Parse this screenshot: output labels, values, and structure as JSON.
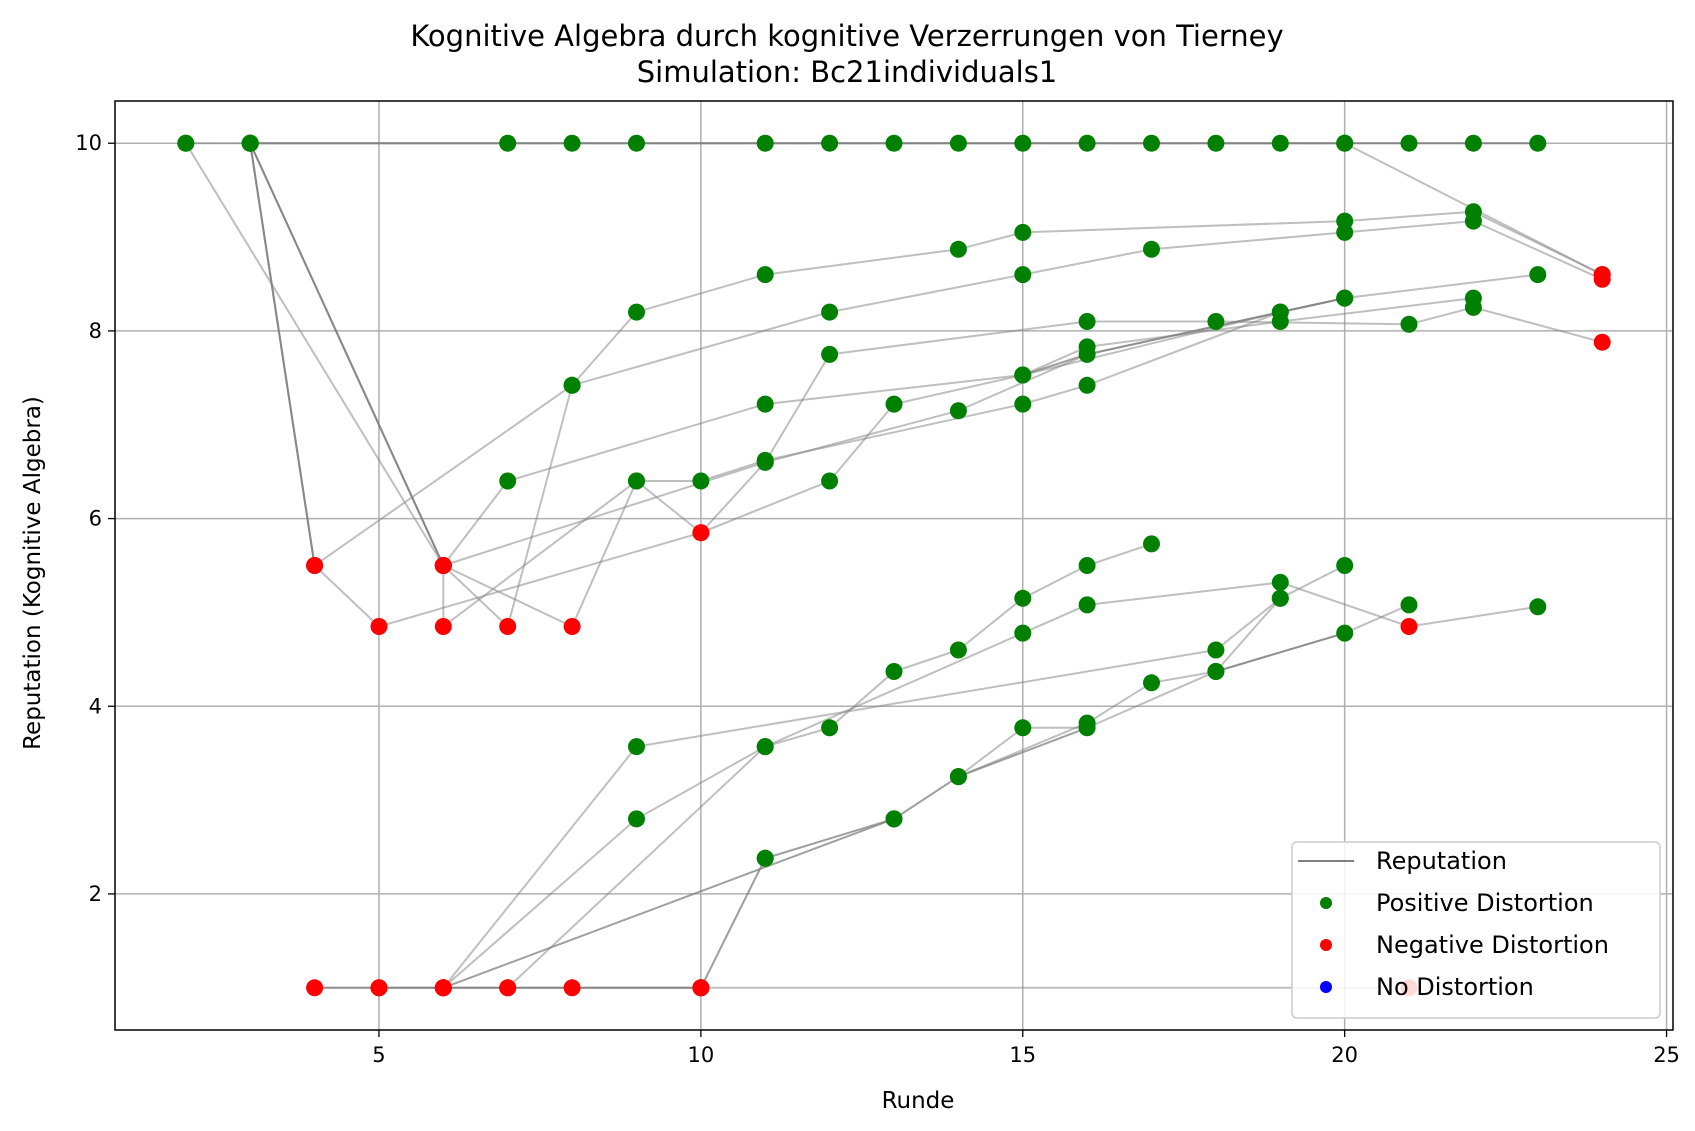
{
  "chart_data": {
    "type": "scatter",
    "title": "Kognitive Algebra durch kognitive Verzerrungen von Tierney",
    "subtitle": "Simulation: Bc21individuals1",
    "xlabel": "Runde",
    "ylabel": "Reputation (Kognitive Algebra)",
    "xlim": [
      0.9,
      25.1
    ],
    "ylim": [
      0.55,
      10.45
    ],
    "xticks": [
      5,
      10,
      15,
      20,
      25
    ],
    "yticks": [
      2,
      4,
      6,
      8,
      10
    ],
    "grid": true,
    "legend_position": "bottom-right",
    "legend": [
      {
        "label": "Reputation",
        "kind": "line",
        "color": "#808080"
      },
      {
        "label": "Positive Distortion",
        "kind": "marker",
        "color": "#008000"
      },
      {
        "label": "Negative Distortion",
        "kind": "marker",
        "color": "#ff0000"
      },
      {
        "label": "No Distortion",
        "kind": "marker",
        "color": "#0000ff"
      }
    ],
    "colors": {
      "positive": "#008000",
      "negative": "#ff0000",
      "neutral": "#0000ff",
      "line": "#808080"
    },
    "series": [
      {
        "points": [
          [
            2,
            10,
            "p"
          ],
          [
            7,
            10,
            "p"
          ],
          [
            8,
            10,
            "p"
          ],
          [
            9,
            10,
            "p"
          ],
          [
            11,
            10,
            "p"
          ],
          [
            12,
            10,
            "p"
          ],
          [
            13,
            10,
            "p"
          ],
          [
            14,
            10,
            "p"
          ],
          [
            15,
            10,
            "p"
          ],
          [
            16,
            10,
            "p"
          ],
          [
            17,
            10,
            "p"
          ],
          [
            18,
            10,
            "p"
          ],
          [
            19,
            10,
            "p"
          ],
          [
            20,
            10,
            "p"
          ],
          [
            21,
            10,
            "p"
          ],
          [
            22,
            10,
            "p"
          ],
          [
            23,
            10,
            "p"
          ]
        ]
      },
      {
        "points": [
          [
            2,
            10,
            "p"
          ],
          [
            6,
            5.5,
            "n"
          ],
          [
            11,
            6.6,
            "p"
          ],
          [
            14,
            7.15,
            "p"
          ],
          [
            16,
            7.75,
            "p"
          ],
          [
            20,
            8.35,
            "p"
          ],
          [
            23,
            8.6,
            "p"
          ]
        ]
      },
      {
        "points": [
          [
            3,
            10,
            "p"
          ],
          [
            4,
            5.5,
            "n"
          ],
          [
            5,
            4.85,
            "n"
          ],
          [
            10,
            5.85,
            "n"
          ],
          [
            11,
            6.6,
            "p"
          ],
          [
            12,
            7.75,
            "p"
          ],
          [
            16,
            8.1,
            "p"
          ],
          [
            18,
            8.1,
            "p"
          ],
          [
            21,
            8.07,
            "p"
          ],
          [
            22,
            8.25,
            "p"
          ],
          [
            24,
            7.88,
            "n"
          ]
        ]
      },
      {
        "points": [
          [
            3,
            10,
            "p"
          ],
          [
            4,
            5.5,
            "n"
          ],
          [
            8,
            7.42,
            "p"
          ],
          [
            12,
            8.2,
            "p"
          ],
          [
            15,
            8.6,
            "p"
          ],
          [
            17,
            8.87,
            "p"
          ],
          [
            20,
            9.05,
            "p"
          ],
          [
            22,
            9.17,
            "p"
          ],
          [
            24,
            8.55,
            "n"
          ]
        ]
      },
      {
        "points": [
          [
            3,
            10,
            "p"
          ],
          [
            6,
            5.5,
            "n"
          ],
          [
            7,
            6.4,
            "p"
          ],
          [
            11,
            7.22,
            "p"
          ],
          [
            15,
            7.53,
            "p"
          ],
          [
            16,
            7.83,
            "p"
          ],
          [
            19,
            8.1,
            "p"
          ],
          [
            22,
            8.35,
            "p"
          ]
        ]
      },
      {
        "points": [
          [
            3,
            10,
            "p"
          ],
          [
            6,
            5.5,
            "n"
          ],
          [
            6,
            4.85,
            "n"
          ],
          [
            9,
            6.4,
            "p"
          ],
          [
            10,
            5.85,
            "n"
          ],
          [
            12,
            6.4,
            "p"
          ],
          [
            13,
            7.22,
            "p"
          ],
          [
            15,
            7.53,
            "p"
          ],
          [
            19,
            8.2,
            "p"
          ],
          [
            20,
            8.35,
            "p"
          ]
        ]
      },
      {
        "points": [
          [
            6,
            5.5,
            "n"
          ],
          [
            8,
            4.85,
            "n"
          ],
          [
            9,
            6.4,
            "p"
          ],
          [
            10,
            6.4,
            "p"
          ],
          [
            11,
            6.62,
            "p"
          ],
          [
            15,
            7.22,
            "p"
          ],
          [
            16,
            7.42,
            "p"
          ],
          [
            19,
            8.2,
            "p"
          ]
        ]
      },
      {
        "points": [
          [
            6,
            5.5,
            "n"
          ],
          [
            7,
            4.85,
            "n"
          ],
          [
            8,
            7.42,
            "p"
          ],
          [
            9,
            8.2,
            "p"
          ],
          [
            11,
            8.6,
            "p"
          ],
          [
            14,
            8.87,
            "p"
          ],
          [
            15,
            9.05,
            "p"
          ],
          [
            20,
            9.17,
            "p"
          ],
          [
            22,
            9.27,
            "p"
          ],
          [
            24,
            8.6,
            "n"
          ]
        ]
      },
      {
        "points": [
          [
            3,
            10,
            "p"
          ],
          [
            20,
            10,
            "p"
          ],
          [
            24,
            8.6,
            "n"
          ]
        ]
      },
      {
        "points": [
          [
            4,
            1,
            "n"
          ],
          [
            5,
            1,
            "n"
          ],
          [
            6,
            1,
            "n"
          ],
          [
            10,
            1,
            "n"
          ],
          [
            11,
            2.38,
            "p"
          ],
          [
            13,
            2.8,
            "p"
          ],
          [
            14,
            3.25,
            "p"
          ],
          [
            16,
            3.82,
            "p"
          ],
          [
            17,
            4.25,
            "p"
          ],
          [
            18,
            4.37,
            "p"
          ],
          [
            19,
            5.15,
            "p"
          ],
          [
            20,
            5.5,
            "p"
          ]
        ]
      },
      {
        "points": [
          [
            5,
            1,
            "n"
          ],
          [
            6,
            1,
            "n"
          ],
          [
            9,
            3.57,
            "p"
          ],
          [
            18,
            4.6,
            "p"
          ],
          [
            19,
            5.15,
            "p"
          ]
        ]
      },
      {
        "points": [
          [
            6,
            1,
            "n"
          ],
          [
            9,
            2.8,
            "p"
          ],
          [
            11,
            3.57,
            "p"
          ],
          [
            12,
            3.77,
            "p"
          ],
          [
            13,
            4.37,
            "p"
          ],
          [
            14,
            4.6,
            "p"
          ],
          [
            15,
            5.15,
            "p"
          ],
          [
            16,
            5.5,
            "p"
          ],
          [
            17,
            5.73,
            "p"
          ]
        ]
      },
      {
        "points": [
          [
            6,
            1,
            "n"
          ],
          [
            7,
            1,
            "n"
          ],
          [
            11,
            3.57,
            "p"
          ],
          [
            15,
            4.78,
            "p"
          ],
          [
            16,
            5.08,
            "p"
          ],
          [
            19,
            5.32,
            "p"
          ],
          [
            21,
            4.85,
            "n"
          ],
          [
            23,
            5.06,
            "p"
          ]
        ]
      },
      {
        "points": [
          [
            7,
            1,
            "n"
          ],
          [
            8,
            1,
            "n"
          ],
          [
            10,
            1,
            "n"
          ],
          [
            11,
            2.38,
            "p"
          ],
          [
            13,
            2.8,
            "p"
          ],
          [
            14,
            3.25,
            "p"
          ],
          [
            15,
            3.77,
            "p"
          ],
          [
            16,
            3.77,
            "p"
          ],
          [
            18,
            4.37,
            "p"
          ],
          [
            20,
            4.78,
            "p"
          ],
          [
            21,
            5.08,
            "p"
          ]
        ]
      },
      {
        "points": [
          [
            10,
            1,
            "n"
          ],
          [
            21,
            1,
            "n"
          ]
        ]
      }
    ],
    "dark_lines": [
      {
        "points": [
          [
            3,
            10
          ],
          [
            4,
            5.5
          ]
        ]
      },
      {
        "points": [
          [
            3,
            10
          ],
          [
            6,
            5.5
          ]
        ]
      },
      {
        "points": [
          [
            3,
            10
          ],
          [
            23,
            10
          ]
        ]
      },
      {
        "points": [
          [
            4,
            1
          ],
          [
            10,
            1
          ]
        ]
      },
      {
        "points": [
          [
            6,
            1
          ],
          [
            13,
            2.8
          ]
        ]
      },
      {
        "points": [
          [
            14,
            3.25
          ],
          [
            16,
            3.77
          ]
        ]
      },
      {
        "points": [
          [
            18,
            4.37
          ],
          [
            20,
            4.78
          ]
        ]
      },
      {
        "points": [
          [
            15,
            7.53
          ],
          [
            16,
            7.75
          ],
          [
            19,
            8.2
          ],
          [
            20,
            8.35
          ]
        ]
      }
    ]
  }
}
